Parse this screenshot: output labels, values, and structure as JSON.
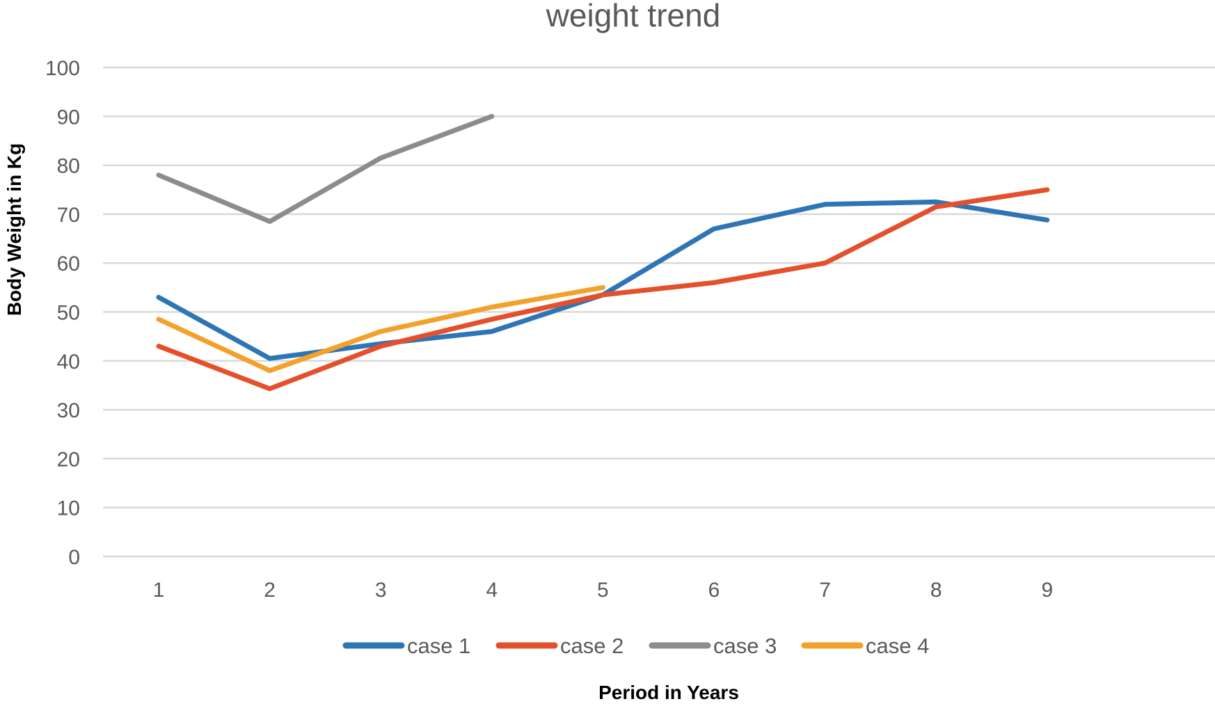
{
  "chart_data": {
    "type": "line",
    "title": "weight trend",
    "xlabel": "Period in Years",
    "ylabel": "Body Weight in Kg",
    "categories": [
      "1",
      "2",
      "3",
      "4",
      "5",
      "6",
      "7",
      "8",
      "9"
    ],
    "ylim": [
      0,
      100
    ],
    "yticks": [
      "0",
      "10",
      "20",
      "30",
      "40",
      "50",
      "60",
      "70",
      "80",
      "90",
      "100"
    ],
    "grid": true,
    "legend_position": "bottom",
    "series": [
      {
        "name": "case 1",
        "color": "#2E75B6",
        "values": [
          53,
          40.5,
          43.5,
          46,
          53.5,
          67,
          72,
          72.5,
          68.8
        ]
      },
      {
        "name": "case 2",
        "color": "#E4502C",
        "values": [
          43,
          34.3,
          43,
          48.5,
          53.5,
          56,
          60,
          71.5,
          75
        ]
      },
      {
        "name": "case 3",
        "color": "#8C8C8C",
        "values": [
          78,
          68.5,
          81.5,
          90,
          null,
          null,
          null,
          null,
          null
        ]
      },
      {
        "name": "case 4",
        "color": "#F4A12C",
        "values": [
          48.5,
          38,
          46,
          51,
          55,
          null,
          null,
          null,
          null
        ]
      }
    ]
  }
}
